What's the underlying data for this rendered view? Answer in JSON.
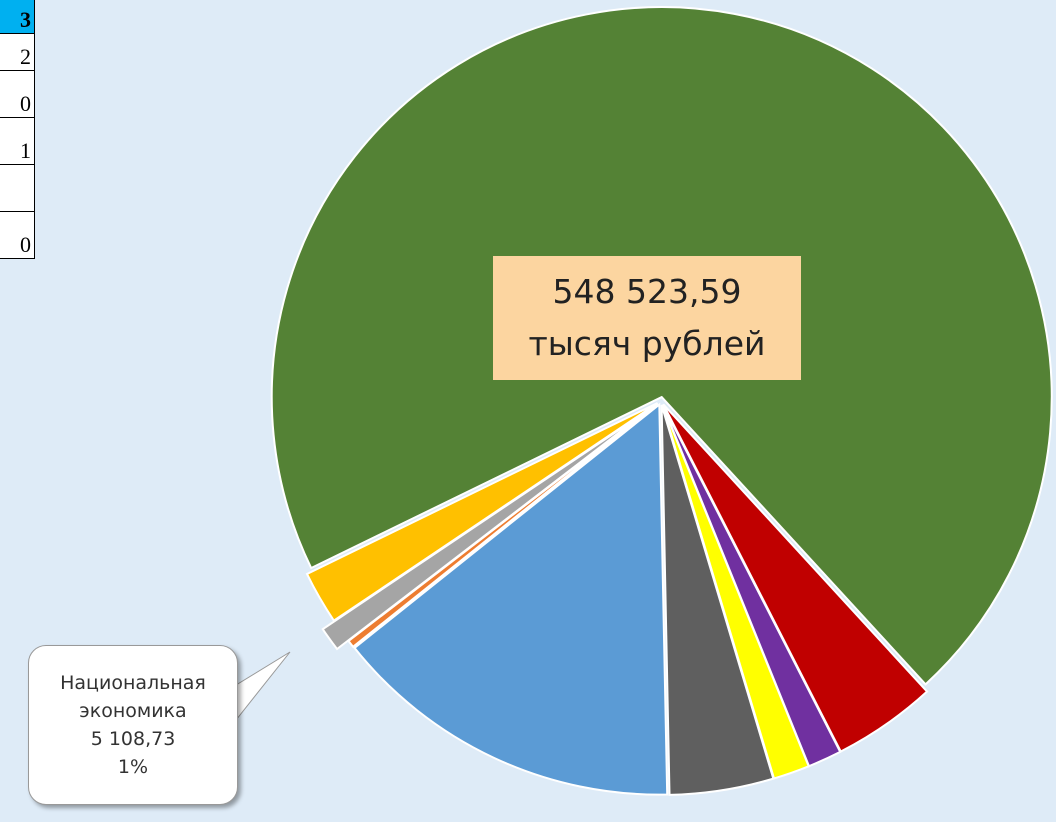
{
  "table": {
    "header": "3",
    "rows": [
      "2",
      "0",
      "1",
      "",
      "0"
    ]
  },
  "chart_data": {
    "type": "pie",
    "categories": [
      null,
      null,
      null,
      null,
      null,
      null,
      null,
      "Национальная экономика",
      null
    ],
    "values": [
      70.4,
      4.3,
      1.4,
      1.5,
      4.3,
      14.6,
      0.3,
      1,
      2.2
    ],
    "value_labels": [
      null,
      null,
      null,
      null,
      null,
      null,
      null,
      "1%",
      null
    ],
    "amount_labels": [
      null,
      null,
      null,
      null,
      null,
      null,
      null,
      "5 108,73",
      null
    ],
    "colors": [
      "#548235",
      "#c00000",
      "#7030a0",
      "#ffff00",
      "#5f5f5f",
      "#5b9bd5",
      "#ed7d31",
      "#a5a5a5",
      "#ffc000"
    ],
    "start_angle": 244,
    "center_label": [
      "548 523,59",
      "тысяч рублей"
    ]
  }
}
